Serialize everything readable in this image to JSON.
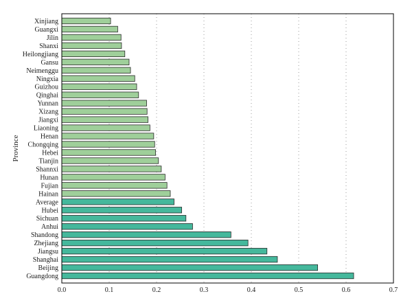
{
  "chart_data": {
    "type": "bar",
    "orientation": "horizontal",
    "ylabel": "Province",
    "xlabel": "",
    "xlim": [
      0,
      0.7
    ],
    "xticks": [
      "0.0",
      "0.1",
      "0.2",
      "0.3",
      "0.4",
      "0.5",
      "0.6",
      "0.7"
    ],
    "grid": "vertical dotted",
    "colors": {
      "group_low": "#9fcf9a",
      "group_high": "#45b89c",
      "edge": "#2a2a2a"
    },
    "categories": [
      "Xinjiang",
      "Guangxi",
      "Jilin",
      "Shanxi",
      "Heilongjiang",
      "Gansu",
      "Neimenggu",
      "Ningxia",
      "Guizhou",
      "Qinghai",
      "Yunnan",
      "Xizang",
      "Jiangxi",
      "Liaoning",
      "Henan",
      "Chongqing",
      "Hebei",
      "Tianjin",
      "Shannxi",
      "Hunan",
      "Fujian",
      "Hainan",
      "Average",
      "Hubei",
      "Sichuan",
      "Anhui",
      "Shandong",
      "Zhejiang",
      "Jiangsu",
      "Shanghai",
      "Beijing",
      "Guangdong"
    ],
    "values": [
      0.103,
      0.118,
      0.125,
      0.126,
      0.133,
      0.142,
      0.145,
      0.154,
      0.158,
      0.162,
      0.179,
      0.18,
      0.182,
      0.186,
      0.194,
      0.196,
      0.198,
      0.204,
      0.21,
      0.218,
      0.222,
      0.229,
      0.237,
      0.253,
      0.262,
      0.276,
      0.357,
      0.393,
      0.433,
      0.455,
      0.54,
      0.616
    ],
    "color_group": [
      "low",
      "low",
      "low",
      "low",
      "low",
      "low",
      "low",
      "low",
      "low",
      "low",
      "low",
      "low",
      "low",
      "low",
      "low",
      "low",
      "low",
      "low",
      "low",
      "low",
      "low",
      "low",
      "high",
      "high",
      "high",
      "high",
      "high",
      "high",
      "high",
      "high",
      "high",
      "high"
    ]
  }
}
